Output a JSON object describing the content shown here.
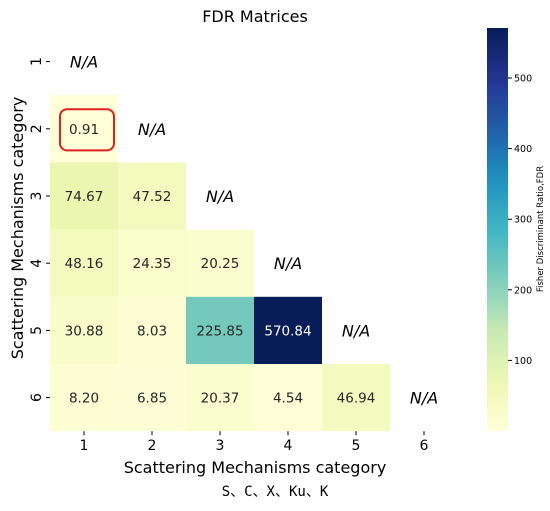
{
  "chart_data": {
    "type": "heatmap",
    "title": "FDR Matrices",
    "xlabel": "Scattering Mechanisms category",
    "ylabel": "Scattering Mechanisms category",
    "categories": [
      "1",
      "2",
      "3",
      "4",
      "5",
      "6"
    ],
    "rows": [
      {
        "label": "1",
        "cells": [
          "N/A",
          null,
          null,
          null,
          null,
          null
        ]
      },
      {
        "label": "2",
        "cells": [
          0.91,
          "N/A",
          null,
          null,
          null,
          null
        ]
      },
      {
        "label": "3",
        "cells": [
          74.67,
          47.52,
          "N/A",
          null,
          null,
          null
        ]
      },
      {
        "label": "4",
        "cells": [
          48.16,
          24.35,
          20.25,
          "N/A",
          null,
          null
        ]
      },
      {
        "label": "5",
        "cells": [
          30.88,
          8.03,
          225.85,
          570.84,
          "N/A",
          null
        ]
      },
      {
        "label": "6",
        "cells": [
          8.2,
          6.85,
          20.37,
          4.54,
          46.94,
          "N/A"
        ]
      }
    ],
    "cell_labels": [
      [
        "N/A",
        "",
        "",
        "",
        "",
        ""
      ],
      [
        "0.91",
        "N/A",
        "",
        "",
        "",
        ""
      ],
      [
        "74.67",
        "47.52",
        "N/A",
        "",
        "",
        ""
      ],
      [
        "48.16",
        "24.35",
        "20.25",
        "N/A",
        "",
        ""
      ],
      [
        "30.88",
        "8.03",
        "225.85",
        "570.84",
        "N/A",
        ""
      ],
      [
        "8.20",
        "6.85",
        "20.37",
        "4.54",
        "46.94",
        "N/A"
      ]
    ],
    "highlighted_cell": {
      "row": "2",
      "col": "1",
      "outline_color": "#e02020"
    },
    "colorbar": {
      "label": "Fisher Discriminant Ratio,FDR",
      "ticks": [
        100,
        200,
        300,
        400,
        500
      ],
      "range": [
        0,
        570.84
      ],
      "colormap": "YlGnBu"
    },
    "grid": false
  },
  "caption": "S、C、X、Ku、K"
}
